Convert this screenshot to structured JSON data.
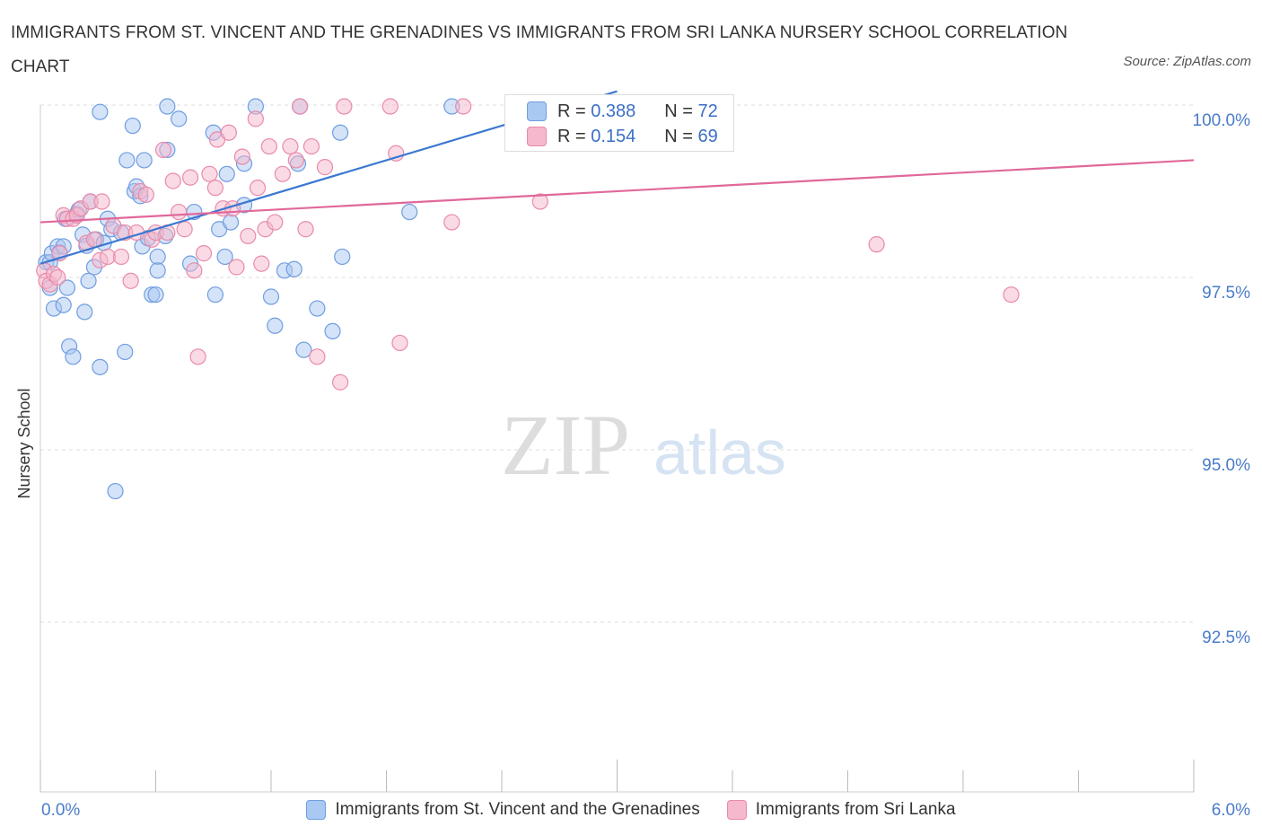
{
  "title": "IMMIGRANTS FROM ST. VINCENT AND THE GRENADINES VS IMMIGRANTS FROM SRI LANKA NURSERY SCHOOL CORRELATION CHART",
  "source": "Source: ZipAtlas.com",
  "watermark": {
    "zip": "ZIP",
    "atlas": "atlas"
  },
  "stats": [
    {
      "r_label": "R =",
      "r_value": "0.388",
      "n_label": "N =",
      "n_value": "72",
      "color": "#a9c8f2"
    },
    {
      "r_label": "R =",
      "r_value": "0.154",
      "n_label": "N =",
      "n_value": "69",
      "color": "#f5b8cc"
    }
  ],
  "legend": [
    {
      "label": "Immigrants from St. Vincent and the Grenadines",
      "color": "#a9c8f2"
    },
    {
      "label": "Immigrants from Sri Lanka",
      "color": "#f5b8cc"
    }
  ],
  "chart_data": {
    "type": "scatter",
    "title": "IMMIGRANTS FROM ST. VINCENT AND THE GRENADINES VS IMMIGRANTS FROM SRI LANKA NURSERY SCHOOL CORRELATION CHART",
    "xlabel": "",
    "ylabel": "Nursery School",
    "xlim": [
      0,
      6
    ],
    "ylim": [
      90.0,
      100.3
    ],
    "x_tick_labels": [
      "0.0%",
      "6.0%"
    ],
    "y_ticks": [
      92.5,
      95.0,
      97.5,
      100.0
    ],
    "y_tick_labels": [
      "92.5%",
      "95.0%",
      "97.5%",
      "100.0%"
    ],
    "grid": true,
    "legend_position": "bottom",
    "series": [
      {
        "name": "Immigrants from St. Vincent and the Grenadines",
        "color": "#a9c8f2",
        "stroke": "#6f9de0",
        "trend_color": "#3b78d0",
        "trend": [
          [
            0.0,
            97.7
          ],
          [
            3.0,
            100.2
          ]
        ],
        "points": [
          [
            0.03,
            97.72
          ],
          [
            0.05,
            97.35
          ],
          [
            0.05,
            97.72
          ],
          [
            0.06,
            97.85
          ],
          [
            0.07,
            97.05
          ],
          [
            0.09,
            97.95
          ],
          [
            0.1,
            97.86
          ],
          [
            0.12,
            97.1
          ],
          [
            0.12,
            97.95
          ],
          [
            0.13,
            98.35
          ],
          [
            0.14,
            97.35
          ],
          [
            0.15,
            96.5
          ],
          [
            0.17,
            96.35
          ],
          [
            0.19,
            98.42
          ],
          [
            0.2,
            98.48
          ],
          [
            0.22,
            98.12
          ],
          [
            0.23,
            97.0
          ],
          [
            0.24,
            97.96
          ],
          [
            0.25,
            97.45
          ],
          [
            0.26,
            98.6
          ],
          [
            0.28,
            97.65
          ],
          [
            0.29,
            98.05
          ],
          [
            0.31,
            96.2
          ],
          [
            0.31,
            99.9
          ],
          [
            0.33,
            98.0
          ],
          [
            0.35,
            98.35
          ],
          [
            0.37,
            98.2
          ],
          [
            0.39,
            94.4
          ],
          [
            0.42,
            98.15
          ],
          [
            0.44,
            96.42
          ],
          [
            0.45,
            99.2
          ],
          [
            0.48,
            99.7
          ],
          [
            0.49,
            98.75
          ],
          [
            0.5,
            98.82
          ],
          [
            0.52,
            98.68
          ],
          [
            0.53,
            97.95
          ],
          [
            0.54,
            99.2
          ],
          [
            0.56,
            98.07
          ],
          [
            0.58,
            97.25
          ],
          [
            0.6,
            97.25
          ],
          [
            0.61,
            97.8
          ],
          [
            0.61,
            97.6
          ],
          [
            0.65,
            98.1
          ],
          [
            0.66,
            99.35
          ],
          [
            0.66,
            99.98
          ],
          [
            0.72,
            99.8
          ],
          [
            0.78,
            97.7
          ],
          [
            0.8,
            98.45
          ],
          [
            0.9,
            99.6
          ],
          [
            0.91,
            97.25
          ],
          [
            0.93,
            98.2
          ],
          [
            0.96,
            97.8
          ],
          [
            0.97,
            99.0
          ],
          [
            0.99,
            98.3
          ],
          [
            1.06,
            99.15
          ],
          [
            1.06,
            98.55
          ],
          [
            1.12,
            99.98
          ],
          [
            1.2,
            97.22
          ],
          [
            1.22,
            96.8
          ],
          [
            1.27,
            97.6
          ],
          [
            1.32,
            97.62
          ],
          [
            1.34,
            99.15
          ],
          [
            1.35,
            99.98
          ],
          [
            1.37,
            96.45
          ],
          [
            1.44,
            97.05
          ],
          [
            1.52,
            96.72
          ],
          [
            1.56,
            99.6
          ],
          [
            1.57,
            97.8
          ],
          [
            1.92,
            98.45
          ],
          [
            2.14,
            99.98
          ],
          [
            2.58,
            99.98
          ],
          [
            2.7,
            99.99
          ]
        ]
      },
      {
        "name": "Immigrants from Sri Lanka",
        "color": "#f5b8cc",
        "stroke": "#e98aaa",
        "trend_color": "#e0689a",
        "trend": [
          [
            0.0,
            98.3
          ],
          [
            6.0,
            99.2
          ]
        ],
        "points": [
          [
            0.02,
            97.6
          ],
          [
            0.03,
            97.45
          ],
          [
            0.05,
            97.4
          ],
          [
            0.07,
            97.55
          ],
          [
            0.09,
            97.5
          ],
          [
            0.1,
            97.85
          ],
          [
            0.12,
            98.4
          ],
          [
            0.14,
            98.35
          ],
          [
            0.17,
            98.35
          ],
          [
            0.19,
            98.4
          ],
          [
            0.21,
            98.5
          ],
          [
            0.24,
            98.0
          ],
          [
            0.26,
            98.6
          ],
          [
            0.28,
            98.05
          ],
          [
            0.31,
            97.75
          ],
          [
            0.32,
            98.6
          ],
          [
            0.35,
            97.8
          ],
          [
            0.38,
            98.25
          ],
          [
            0.42,
            97.8
          ],
          [
            0.44,
            98.15
          ],
          [
            0.47,
            97.45
          ],
          [
            0.5,
            98.15
          ],
          [
            0.52,
            98.75
          ],
          [
            0.55,
            98.7
          ],
          [
            0.58,
            98.05
          ],
          [
            0.6,
            98.15
          ],
          [
            0.64,
            99.35
          ],
          [
            0.66,
            98.15
          ],
          [
            0.69,
            98.9
          ],
          [
            0.72,
            98.45
          ],
          [
            0.75,
            98.2
          ],
          [
            0.78,
            98.95
          ],
          [
            0.8,
            97.6
          ],
          [
            0.82,
            96.35
          ],
          [
            0.85,
            97.85
          ],
          [
            0.88,
            99.0
          ],
          [
            0.91,
            98.8
          ],
          [
            0.92,
            99.5
          ],
          [
            0.95,
            98.5
          ],
          [
            0.98,
            99.6
          ],
          [
            1.0,
            98.5
          ],
          [
            1.02,
            97.65
          ],
          [
            1.05,
            99.25
          ],
          [
            1.08,
            98.1
          ],
          [
            1.12,
            99.8
          ],
          [
            1.13,
            98.8
          ],
          [
            1.15,
            97.7
          ],
          [
            1.17,
            98.2
          ],
          [
            1.19,
            99.4
          ],
          [
            1.22,
            98.3
          ],
          [
            1.26,
            99.0
          ],
          [
            1.3,
            99.4
          ],
          [
            1.33,
            99.2
          ],
          [
            1.35,
            99.98
          ],
          [
            1.38,
            98.2
          ],
          [
            1.41,
            99.4
          ],
          [
            1.44,
            96.35
          ],
          [
            1.48,
            99.1
          ],
          [
            1.56,
            95.98
          ],
          [
            1.58,
            99.98
          ],
          [
            1.82,
            99.98
          ],
          [
            1.85,
            99.3
          ],
          [
            1.87,
            96.55
          ],
          [
            2.2,
            99.98
          ],
          [
            2.14,
            98.3
          ],
          [
            2.55,
            99.98
          ],
          [
            2.6,
            98.6
          ],
          [
            4.35,
            97.98
          ],
          [
            5.05,
            97.25
          ]
        ]
      }
    ]
  }
}
